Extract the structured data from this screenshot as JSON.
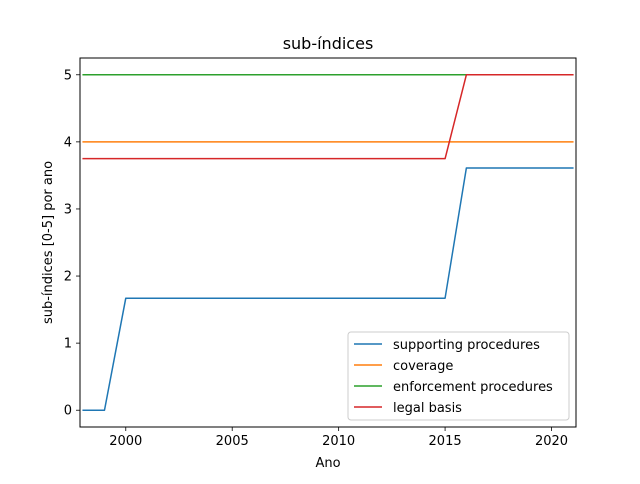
{
  "chart_data": {
    "type": "line",
    "title": "sub-índices",
    "xlabel": "Ano",
    "ylabel": "sub-índices [0-5] por ano",
    "xlim": [
      1997.85,
      2021.15
    ],
    "ylim": [
      -0.25,
      5.25
    ],
    "xticks": [
      2000,
      2005,
      2010,
      2015,
      2020
    ],
    "yticks": [
      0,
      1,
      2,
      3,
      4,
      5
    ],
    "grid": false,
    "legend_position": "lower-right",
    "x": [
      1998,
      1999,
      2000,
      2001,
      2002,
      2003,
      2004,
      2005,
      2006,
      2007,
      2008,
      2009,
      2010,
      2011,
      2012,
      2013,
      2014,
      2015,
      2016,
      2017,
      2018,
      2019,
      2020,
      2021
    ],
    "series": [
      {
        "name": "supporting procedures",
        "color": "#1f77b4",
        "values": [
          0,
          0,
          1.67,
          1.67,
          1.67,
          1.67,
          1.67,
          1.67,
          1.67,
          1.67,
          1.67,
          1.67,
          1.67,
          1.67,
          1.67,
          1.67,
          1.67,
          1.67,
          3.61,
          3.61,
          3.61,
          3.61,
          3.61,
          3.61
        ]
      },
      {
        "name": "coverage",
        "color": "#ff7f0e",
        "values": [
          4,
          4,
          4,
          4,
          4,
          4,
          4,
          4,
          4,
          4,
          4,
          4,
          4,
          4,
          4,
          4,
          4,
          4,
          4,
          4,
          4,
          4,
          4,
          4
        ]
      },
      {
        "name": "enforcement procedures",
        "color": "#2ca02c",
        "values": [
          5,
          5,
          5,
          5,
          5,
          5,
          5,
          5,
          5,
          5,
          5,
          5,
          5,
          5,
          5,
          5,
          5,
          5,
          5,
          5,
          5,
          5,
          5,
          5
        ]
      },
      {
        "name": "legal basis",
        "color": "#d62728",
        "values": [
          3.75,
          3.75,
          3.75,
          3.75,
          3.75,
          3.75,
          3.75,
          3.75,
          3.75,
          3.75,
          3.75,
          3.75,
          3.75,
          3.75,
          3.75,
          3.75,
          3.75,
          3.75,
          5,
          5,
          5,
          5,
          5,
          5
        ]
      }
    ]
  }
}
